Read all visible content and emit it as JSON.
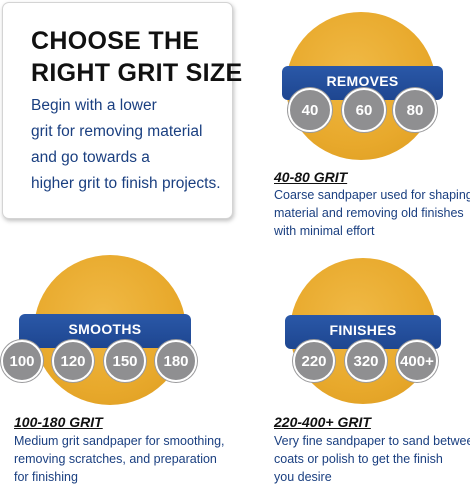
{
  "intro": {
    "title_lines": [
      "CHOOSE THE",
      "RIGHT GRIT SIZE"
    ],
    "body_lines": [
      "Begin with a lower",
      "grit for removing material",
      "and go towards a",
      "higher grit to finish projects."
    ]
  },
  "sections": [
    {
      "band_label": "REMOVES",
      "chips": [
        "40",
        "60",
        "80"
      ],
      "heading": "40-80 GRIT",
      "desc_lines": [
        "Coarse sandpaper used for shaping",
        "material and removing old finishes",
        "with minimal effort"
      ]
    },
    {
      "band_label": "SMOOTHS",
      "chips": [
        "100",
        "120",
        "150",
        "180"
      ],
      "heading": "100-180 GRIT",
      "desc_lines": [
        "Medium grit sandpaper for smoothing,",
        "removing scratches, and preparation",
        "for finishing"
      ]
    },
    {
      "band_label": "FINISHES",
      "chips": [
        "220",
        "320",
        "400+"
      ],
      "heading": "220-400+ GRIT",
      "desc_lines": [
        "Very fine sandpaper to sand between",
        "coats or polish to get the finish",
        "you desire"
      ]
    }
  ],
  "colors": {
    "disc": "#e8a92c",
    "band": "#1e4690",
    "chip": "#8f8f91",
    "text_blue": "#1a3f80"
  }
}
